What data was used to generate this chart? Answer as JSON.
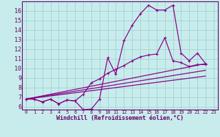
{
  "title": "",
  "xlabel": "Windchill (Refroidissement éolien,°C)",
  "ylabel": "",
  "bg_color": "#c8ecec",
  "line_color": "#880088",
  "grid_color": "#99cccc",
  "axis_color": "#660066",
  "spine_color": "#660066",
  "xlim": [
    -0.5,
    23.5
  ],
  "ylim": [
    5.7,
    17.0
  ],
  "xticks": [
    0,
    1,
    2,
    3,
    4,
    5,
    6,
    7,
    8,
    9,
    10,
    11,
    12,
    13,
    14,
    15,
    16,
    17,
    18,
    19,
    20,
    21,
    22,
    23
  ],
  "yticks": [
    6,
    7,
    8,
    9,
    10,
    11,
    12,
    13,
    14,
    15,
    16
  ],
  "series": [
    {
      "x": [
        0,
        1,
        2,
        3,
        4,
        5,
        6,
        7,
        8,
        9,
        10,
        11,
        12,
        13,
        14,
        15,
        16,
        17,
        18,
        19,
        20,
        21,
        22
      ],
      "y": [
        6.8,
        6.8,
        6.5,
        6.8,
        6.3,
        6.7,
        6.6,
        5.7,
        5.75,
        6.8,
        11.1,
        9.4,
        12.9,
        14.5,
        15.7,
        16.6,
        16.1,
        16.1,
        16.6,
        11.6,
        10.8,
        11.6,
        10.5
      ],
      "marker": true,
      "linewidth": 0.9
    },
    {
      "x": [
        0,
        1,
        2,
        3,
        4,
        5,
        6,
        7,
        8,
        9,
        10,
        11,
        12,
        13,
        14,
        15,
        16,
        17,
        18,
        19,
        20,
        21,
        22
      ],
      "y": [
        6.8,
        6.8,
        6.5,
        6.8,
        6.3,
        6.7,
        6.6,
        7.3,
        8.5,
        8.9,
        9.5,
        9.9,
        10.3,
        10.8,
        11.2,
        11.4,
        11.5,
        13.2,
        10.8,
        10.6,
        10.2,
        10.4,
        10.4
      ],
      "marker": true,
      "linewidth": 0.9
    },
    {
      "x": [
        0,
        22
      ],
      "y": [
        6.8,
        10.5
      ],
      "marker": false,
      "linewidth": 0.9
    },
    {
      "x": [
        0,
        22
      ],
      "y": [
        6.8,
        9.8
      ],
      "marker": false,
      "linewidth": 0.9
    },
    {
      "x": [
        0,
        22
      ],
      "y": [
        6.8,
        9.2
      ],
      "marker": false,
      "linewidth": 0.9
    }
  ]
}
